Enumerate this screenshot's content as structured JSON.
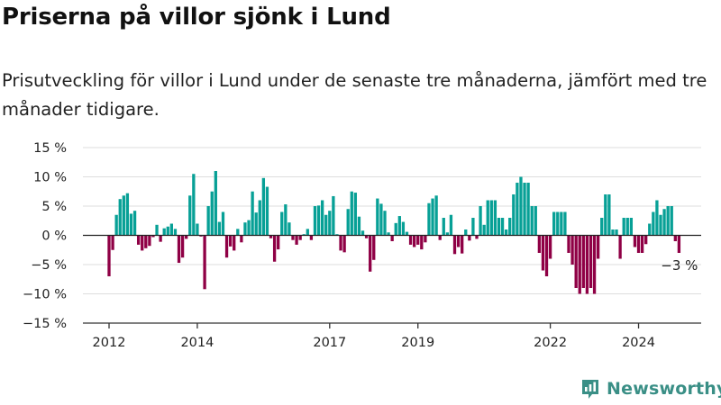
{
  "title": "Priserna på villor sjönk i Lund",
  "subtitle": "Prisutveckling för villor i Lund under de senaste tre månaderna, jämfört med tre månader tidigare.",
  "brand": {
    "name": "Newsworthy",
    "logo_icon": "newsworthy-logo-icon",
    "color": "#3a8f86"
  },
  "colors": {
    "positive": "#07a096",
    "negative": "#8f0045",
    "grid": "#dddddd",
    "axis": "#333333"
  },
  "annotation": {
    "label": "−3 %",
    "value": -3
  },
  "chart_data": {
    "type": "bar",
    "title": "Priserna på villor sjönk i Lund",
    "xlabel": "",
    "ylabel": "",
    "ylim": [
      -15,
      15
    ],
    "yticks": [
      15,
      10,
      5,
      0,
      -5,
      -10,
      -15
    ],
    "ytick_labels": [
      "15 %",
      "10 %",
      "5 %",
      "0 %",
      "−5 %",
      "−10 %",
      "−15 %"
    ],
    "xticks": [
      "2012",
      "2014",
      "2017",
      "2019",
      "2022",
      "2024"
    ],
    "positive_color": "#07a096",
    "negative_color": "#8f0045",
    "grid": true,
    "x": [
      "2012-01",
      "2012-02",
      "2012-03",
      "2012-04",
      "2012-05",
      "2012-06",
      "2012-07",
      "2012-08",
      "2012-09",
      "2012-10",
      "2012-11",
      "2012-12",
      "2013-01",
      "2013-02",
      "2013-03",
      "2013-04",
      "2013-05",
      "2013-06",
      "2013-07",
      "2013-08",
      "2013-09",
      "2013-10",
      "2013-11",
      "2013-12",
      "2014-01",
      "2014-02",
      "2014-03",
      "2014-04",
      "2014-05",
      "2014-06",
      "2014-07",
      "2014-08",
      "2014-09",
      "2014-10",
      "2014-11",
      "2014-12",
      "2015-01",
      "2015-02",
      "2015-03",
      "2015-04",
      "2015-05",
      "2015-06",
      "2015-07",
      "2015-08",
      "2015-09",
      "2015-10",
      "2015-11",
      "2015-12",
      "2016-01",
      "2016-02",
      "2016-03",
      "2016-04",
      "2016-05",
      "2016-06",
      "2016-07",
      "2016-08",
      "2016-09",
      "2016-10",
      "2016-11",
      "2016-12",
      "2017-01",
      "2017-02",
      "2017-03",
      "2017-04",
      "2017-05",
      "2017-06",
      "2017-07",
      "2017-08",
      "2017-09",
      "2017-10",
      "2017-11",
      "2017-12",
      "2018-01",
      "2018-02",
      "2018-03",
      "2018-04",
      "2018-05",
      "2018-06",
      "2018-07",
      "2018-08",
      "2018-09",
      "2018-10",
      "2018-11",
      "2018-12",
      "2019-01",
      "2019-02",
      "2019-03",
      "2019-04",
      "2019-05",
      "2019-06",
      "2019-07",
      "2019-08",
      "2019-09",
      "2019-10",
      "2019-11",
      "2019-12",
      "2020-01",
      "2020-02",
      "2020-03",
      "2020-04",
      "2020-05",
      "2020-06",
      "2020-07",
      "2020-08",
      "2020-09",
      "2020-10",
      "2020-11",
      "2020-12",
      "2021-01",
      "2021-02",
      "2021-03",
      "2021-04",
      "2021-05",
      "2021-06",
      "2021-07",
      "2021-08",
      "2021-09",
      "2021-10",
      "2021-11",
      "2021-12",
      "2022-01",
      "2022-02",
      "2022-03",
      "2022-04",
      "2022-05",
      "2022-06",
      "2022-07",
      "2022-08",
      "2022-09",
      "2022-10",
      "2022-11",
      "2022-12",
      "2023-01",
      "2023-02",
      "2023-03",
      "2023-04",
      "2023-05",
      "2023-06",
      "2023-07",
      "2023-08",
      "2023-09",
      "2023-10",
      "2023-11",
      "2023-12",
      "2024-01",
      "2024-02",
      "2024-03",
      "2024-04",
      "2024-05",
      "2024-06",
      "2024-07",
      "2024-08",
      "2024-09",
      "2024-10",
      "2024-11",
      "2024-12"
    ],
    "values": [
      -7,
      -2.5,
      3.5,
      6.2,
      6.8,
      7.2,
      3.7,
      4.2,
      -1.6,
      -2.6,
      -2.2,
      -1.8,
      -0.3,
      1.8,
      -1.1,
      1.2,
      1.5,
      2,
      1.1,
      -4.7,
      -3.8,
      -0.6,
      6.8,
      10.5,
      2,
      -0.2,
      -9.2,
      5,
      7.5,
      11,
      2.3,
      4,
      -3.8,
      -1.9,
      -2.6,
      1.1,
      -1.2,
      2.2,
      2.6,
      7.5,
      3.9,
      6,
      9.8,
      8.3,
      -0.5,
      -4.5,
      -2.4,
      4,
      5.3,
      2.2,
      -0.8,
      -1.6,
      -0.8,
      0.2,
      1.1,
      -0.8,
      5,
      5.1,
      6,
      3.5,
      4.2,
      6.7,
      0.2,
      -2.6,
      -2.9,
      4.5,
      7.5,
      7.3,
      3.2,
      0.8,
      -0.5,
      -6.2,
      -4.2,
      6.3,
      5.4,
      4.2,
      0.5,
      -1,
      2.1,
      3.3,
      2.3,
      0.6,
      -1.6,
      -2,
      -1.6,
      -2.4,
      -1.2,
      5.5,
      6.3,
      6.8,
      -0.8,
      3,
      0.5,
      3.5,
      -3.2,
      -2,
      -3.1,
      1,
      -0.9,
      3,
      -0.6,
      5,
      1.8,
      6,
      6,
      6,
      3,
      3,
      1,
      3,
      7,
      9,
      10,
      9,
      9,
      5,
      5,
      -3,
      -6,
      -7,
      -4,
      4,
      4,
      4,
      4,
      -3,
      -5,
      -9,
      -10,
      -9,
      -10,
      -9,
      -10,
      -4,
      3,
      7,
      7,
      1,
      1,
      -4,
      3,
      3,
      3,
      -2,
      -3,
      -3,
      -1.5,
      2,
      4,
      6,
      3.5,
      4.5,
      5,
      5,
      -1,
      -3
    ]
  }
}
